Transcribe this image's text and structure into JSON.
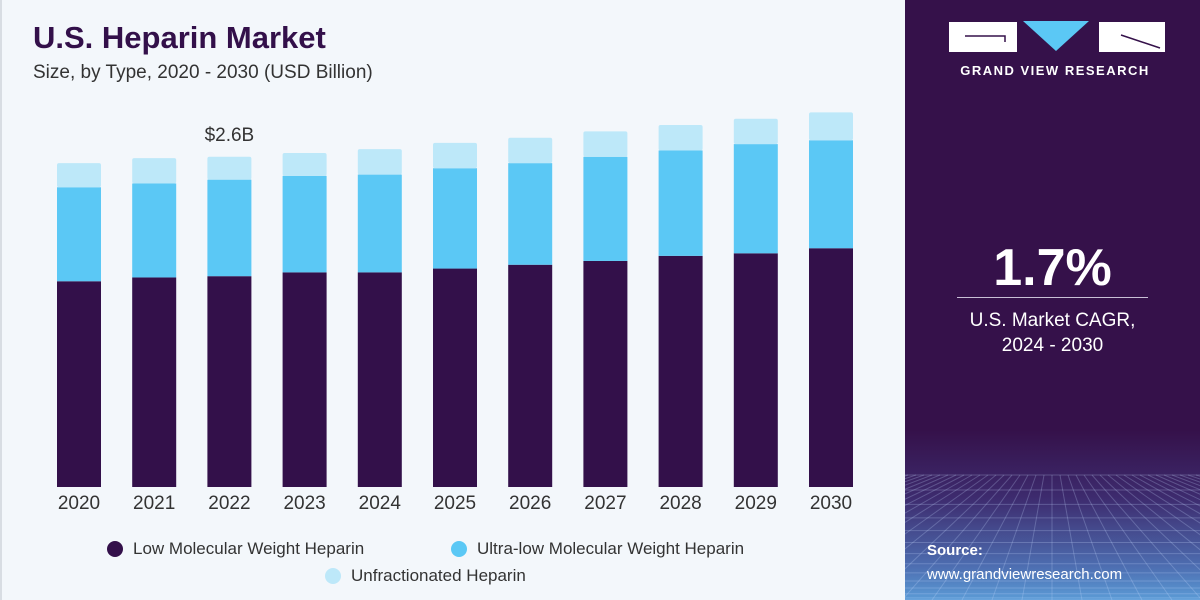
{
  "header": {
    "title": "U.S. Heparin Market",
    "subtitle": "Size, by Type, 2020 - 2030 (USD Billion)"
  },
  "chart_data": {
    "type": "bar",
    "stacked": true,
    "title": "U.S. Heparin Market",
    "subtitle": "Size, by Type, 2020 - 2030 (USD Billion)",
    "categories": [
      "2020",
      "2021",
      "2022",
      "2023",
      "2024",
      "2025",
      "2026",
      "2027",
      "2028",
      "2029",
      "2030"
    ],
    "series": [
      {
        "name": "Low Molecular Weight Heparin",
        "color": "#33104a",
        "values": [
          1.62,
          1.65,
          1.66,
          1.69,
          1.69,
          1.72,
          1.75,
          1.78,
          1.82,
          1.84,
          1.88
        ]
      },
      {
        "name": "Ultra-low Molecular Weight Heparin",
        "color": "#5bc8f5",
        "values": [
          0.74,
          0.74,
          0.76,
          0.76,
          0.77,
          0.79,
          0.8,
          0.82,
          0.83,
          0.86,
          0.85
        ]
      },
      {
        "name": "Unfractionated Heparin",
        "color": "#bde8f9",
        "values": [
          0.19,
          0.2,
          0.18,
          0.18,
          0.2,
          0.2,
          0.2,
          0.2,
          0.2,
          0.2,
          0.22
        ]
      }
    ],
    "annotations": [
      {
        "category": "2022",
        "text": "$2.6B"
      }
    ],
    "grid": false,
    "legend": "bottom"
  },
  "sidebar": {
    "brand": "GRAND VIEW RESEARCH",
    "cagr_value": "1.7%",
    "cagr_label_1": "U.S. Market CAGR,",
    "cagr_label_2": "2024 - 2030",
    "source_label": "Source:",
    "source_url": "www.grandviewresearch.com",
    "colors": {
      "background": "#35114a",
      "logo_accent": "#5bc8f5"
    }
  }
}
